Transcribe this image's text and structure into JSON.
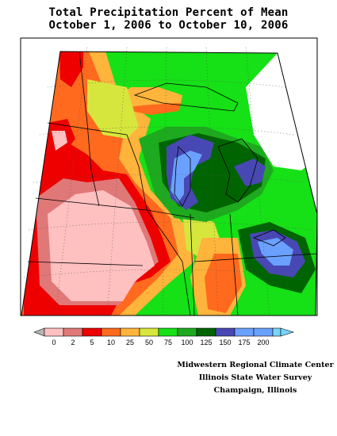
{
  "title": {
    "line1": "Total Precipitation Percent of Mean",
    "line2": "October 1, 2006 to October 10, 2006"
  },
  "legend": {
    "ticks": [
      "0",
      "2",
      "5",
      "10",
      "25",
      "50",
      "75",
      "100",
      "125",
      "150",
      "175",
      "200"
    ],
    "colors": [
      "#b4b4b4",
      "#ffc0c0",
      "#e07878",
      "#ee0000",
      "#ff6a1e",
      "#ffb43c",
      "#d6e63c",
      "#16e016",
      "#1eaa1e",
      "#006400",
      "#4848b4",
      "#6aa0ff",
      "#78d4f8"
    ]
  },
  "credits": {
    "line1": "Midwestern Regional Climate Center",
    "line2": "Illinois State Water Survey",
    "line3": "Champaign, Illinois"
  }
}
